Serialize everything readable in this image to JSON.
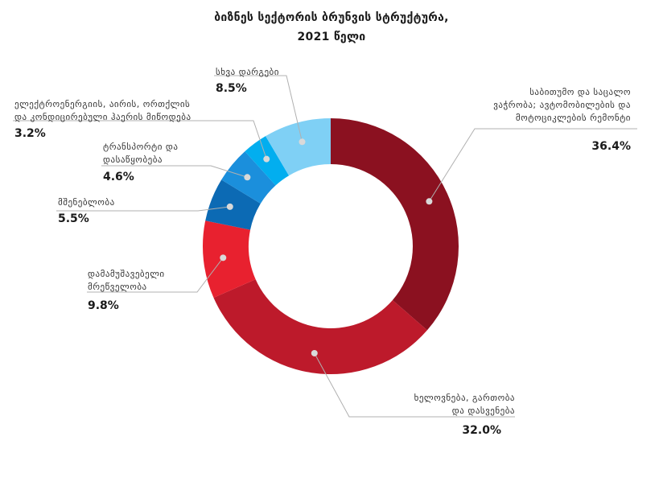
{
  "title": {
    "line1": "ბიზნეს სექტორის ბრუნვის სტრუქტურა,",
    "line2": "2021 წელი"
  },
  "chart_data": {
    "type": "pie",
    "donut": true,
    "title": "ბიზნეს სექტორის ბრუნვის სტრუქტურა, 2021 წელი",
    "slices": [
      {
        "label_lines": [
          "საბითუმო და საცალო",
          "ვაჭრობა; ავტომობილების და",
          "მოტოციკლების რემონტი"
        ],
        "value": 36.4,
        "value_label": "36.4%",
        "color": "#8b1120"
      },
      {
        "label_lines": [
          "ხელოვნება, გართობა",
          "და დასვენება"
        ],
        "value": 32.0,
        "value_label": "32.0%",
        "color": "#bd1a2b"
      },
      {
        "label_lines": [
          "დამამუშავებელი",
          "მრეწველობა"
        ],
        "value": 9.8,
        "value_label": "9.8%",
        "color": "#e8212f"
      },
      {
        "label_lines": [
          "მშენებლობა"
        ],
        "value": 5.5,
        "value_label": "5.5%",
        "color": "#0c6ab4"
      },
      {
        "label_lines": [
          "ტრანსპორტი და",
          "დასაწყობება"
        ],
        "value": 4.6,
        "value_label": "4.6%",
        "color": "#1b8fdc"
      },
      {
        "label_lines": [
          "ელექტროენერგიის, აირის, ორთქლის",
          "და კონდიცირებული ჰაერის მიწოდება"
        ],
        "value": 3.2,
        "value_label": "3.2%",
        "color": "#02aeef"
      },
      {
        "label_lines": [
          "სხვა დარგები"
        ],
        "value": 8.5,
        "value_label": "8.5%",
        "color": "#7fd0f5"
      }
    ]
  }
}
